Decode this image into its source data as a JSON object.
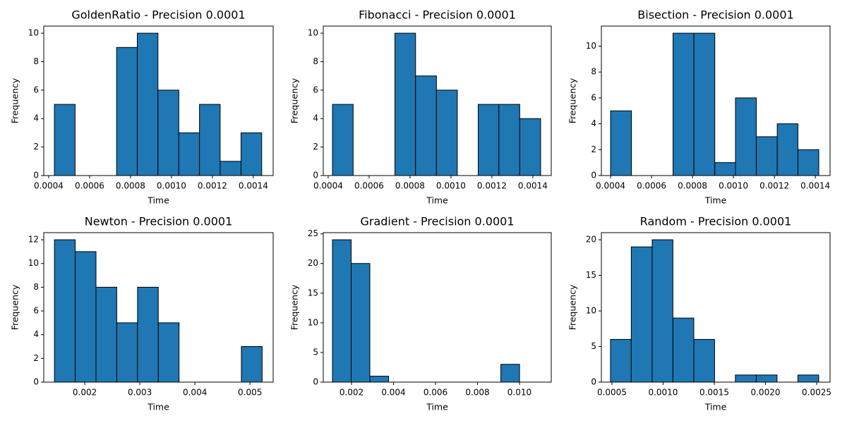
{
  "chart_data": [
    {
      "type": "histogram",
      "title": "GoldenRatio - Precision 0.0001",
      "xlabel": "Time",
      "ylabel": "Frequency",
      "color": "#1f77b4",
      "edgecolor": "#000000",
      "bins": [
        0.000428,
        0.000529,
        0.00063,
        0.000732,
        0.000833,
        0.000934,
        0.001036,
        0.001137,
        0.001238,
        0.00134,
        0.001441
      ],
      "counts": [
        5,
        0,
        0,
        9,
        10,
        6,
        3,
        5,
        1,
        3
      ],
      "xlim": [
        0.000376,
        0.001497
      ],
      "ylim": [
        0,
        10.5
      ],
      "xticks": [
        0.0004,
        0.0006,
        0.0008,
        {
          "value": 0.001,
          "label": "0.0010"
        },
        0.0012,
        0.0014
      ],
      "yticks": [
        0,
        2,
        4,
        6,
        8,
        10
      ]
    },
    {
      "type": "histogram",
      "title": "Fibonacci - Precision 0.0001",
      "xlabel": "Time",
      "ylabel": "Frequency",
      "color": "#1f77b4",
      "edgecolor": "#000000",
      "bins": [
        0.000421,
        0.000522,
        0.000624,
        0.000726,
        0.000827,
        0.000929,
        0.001031,
        0.001133,
        0.001234,
        0.001336,
        0.001438
      ],
      "counts": [
        5,
        0,
        0,
        10,
        7,
        6,
        0,
        5,
        5,
        4
      ],
      "xlim": [
        0.000376,
        0.00149
      ],
      "ylim": [
        0,
        10.5
      ],
      "xticks": [
        0.0004,
        0.0006,
        0.0008,
        {
          "value": 0.001,
          "label": "0.0010"
        },
        0.0012,
        0.0014
      ],
      "yticks": [
        0,
        2,
        4,
        6,
        8,
        10
      ]
    },
    {
      "type": "histogram",
      "title": "Bisection - Precision 0.0001",
      "xlabel": "Time",
      "ylabel": "Frequency",
      "color": "#1f77b4",
      "edgecolor": "#000000",
      "bins": [
        0.0004,
        0.000502,
        0.000603,
        0.000705,
        0.000807,
        0.000909,
        0.00101,
        0.001112,
        0.001214,
        0.001315,
        0.001417
      ],
      "counts": [
        5,
        0,
        0,
        11,
        11,
        1,
        6,
        3,
        4,
        2
      ],
      "xlim": [
        0.000355,
        0.001472
      ],
      "ylim": [
        0,
        11.55
      ],
      "xticks": [
        0.0004,
        0.0006,
        0.0008,
        {
          "value": 0.001,
          "label": "0.0010"
        },
        0.0012,
        0.0014
      ],
      "yticks": [
        0,
        2,
        4,
        6,
        8,
        10
      ]
    },
    {
      "type": "histogram",
      "title": "Newton - Precision 0.0001",
      "xlabel": "Time",
      "ylabel": "Frequency",
      "color": "#1f77b4",
      "edgecolor": "#000000",
      "bins": [
        0.00145,
        0.001827,
        0.002204,
        0.002581,
        0.002958,
        0.003335,
        0.003712,
        0.004089,
        0.004466,
        0.004843,
        0.00522
      ],
      "counts": [
        12,
        11,
        8,
        5,
        8,
        5,
        0,
        0,
        0,
        3
      ],
      "xlim": [
        0.001256,
        0.00542
      ],
      "ylim": [
        0,
        12.6
      ],
      "xticks": [
        0.002,
        0.003,
        0.004,
        0.005
      ],
      "yticks": [
        0,
        2,
        4,
        6,
        8,
        10,
        12
      ]
    },
    {
      "type": "histogram",
      "title": "Gradient - Precision 0.0001",
      "xlabel": "Time",
      "ylabel": "Frequency",
      "color": "#1f77b4",
      "edgecolor": "#000000",
      "bins": [
        0.001092,
        0.001983,
        0.002874,
        0.003765,
        0.004657,
        0.005548,
        0.006439,
        0.00733,
        0.008221,
        0.009112,
        0.010003
      ],
      "counts": [
        24,
        20,
        1,
        0,
        0,
        0,
        0,
        0,
        0,
        3
      ],
      "xlim": [
        0.000655,
        0.011513
      ],
      "ylim": [
        0,
        25.2
      ],
      "xticks": [
        0.002,
        0.004,
        0.006,
        0.008,
        {
          "value": 0.01,
          "label": "0.010"
        }
      ],
      "yticks": [
        0,
        5,
        10,
        15,
        20,
        25
      ]
    },
    {
      "type": "histogram",
      "title": "Random - Precision 0.0001",
      "xlabel": "Time",
      "ylabel": "Frequency",
      "color": "#1f77b4",
      "edgecolor": "#000000",
      "bins": [
        0.000486,
        0.000689,
        0.000893,
        0.001096,
        0.0013,
        0.001503,
        0.001706,
        0.00191,
        0.002113,
        0.002317,
        0.00252
      ],
      "counts": [
        6,
        19,
        20,
        9,
        6,
        0,
        1,
        1,
        0,
        1
      ],
      "xlim": [
        0.000397,
        0.002631
      ],
      "ylim": [
        0,
        21
      ],
      "xticks": [
        0.0005,
        {
          "value": 0.001,
          "label": "0.0010"
        },
        0.0015,
        {
          "value": 0.002,
          "label": "0.0020"
        },
        0.0025
      ],
      "yticks": [
        0,
        5,
        10,
        15,
        20
      ]
    }
  ]
}
